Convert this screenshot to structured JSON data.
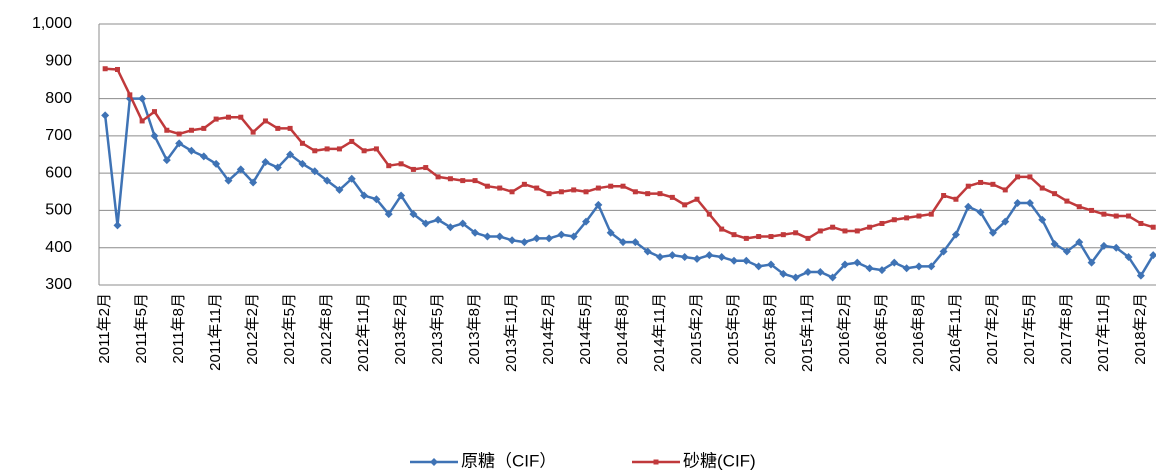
{
  "chart_data": {
    "type": "line",
    "categories": [
      "2011年2月",
      null,
      null,
      "2011年5月",
      null,
      null,
      "2011年8月",
      null,
      null,
      "2011年11月",
      null,
      null,
      "2012年2月",
      null,
      null,
      "2012年5月",
      null,
      null,
      "2012年8月",
      null,
      null,
      "2012年11月",
      null,
      null,
      "2013年2月",
      null,
      null,
      "2013年5月",
      null,
      null,
      "2013年8月",
      null,
      null,
      "2013年11月",
      null,
      null,
      "2014年2月",
      null,
      null,
      "2014年5月",
      null,
      null,
      "2014年8月",
      null,
      null,
      "2014年11月",
      null,
      null,
      "2015年2月",
      null,
      null,
      "2015年5月",
      null,
      null,
      "2015年8月",
      null,
      null,
      "2015年11月",
      null,
      null,
      "2016年2月",
      null,
      null,
      "2016年5月",
      null,
      null,
      "2016年8月",
      null,
      null,
      "2016年11月",
      null,
      null,
      "2017年2月",
      null,
      null,
      "2017年5月",
      null,
      null,
      "2017年8月",
      null,
      null,
      "2017年11月",
      null,
      null,
      "2018年2月",
      null
    ],
    "series": [
      {
        "name": "原糖（CIF）",
        "color": "#3f73b5",
        "marker": "diamond",
        "values": [
          755,
          460,
          800,
          800,
          700,
          635,
          680,
          660,
          645,
          625,
          580,
          610,
          575,
          630,
          615,
          650,
          625,
          605,
          580,
          555,
          585,
          540,
          530,
          490,
          540,
          490,
          465,
          475,
          455,
          465,
          440,
          430,
          430,
          420,
          415,
          425,
          425,
          435,
          430,
          470,
          515,
          440,
          415,
          415,
          390,
          375,
          380,
          375,
          370,
          380,
          375,
          365,
          365,
          350,
          355,
          330,
          320,
          335,
          335,
          320,
          355,
          360,
          345,
          340,
          360,
          345,
          350,
          350,
          390,
          435,
          510,
          495,
          440,
          470,
          520,
          520,
          475,
          410,
          390,
          415,
          360,
          405,
          400,
          375,
          325,
          380
        ]
      },
      {
        "name": "砂糖(CIF)",
        "color": "#c0393b",
        "marker": "square",
        "values": [
          880,
          878,
          810,
          740,
          765,
          715,
          705,
          715,
          720,
          745,
          750,
          750,
          710,
          740,
          720,
          720,
          680,
          660,
          665,
          665,
          685,
          660,
          665,
          620,
          625,
          610,
          615,
          590,
          585,
          580,
          580,
          565,
          560,
          550,
          570,
          560,
          545,
          550,
          555,
          550,
          560,
          565,
          565,
          550,
          545,
          545,
          535,
          515,
          530,
          490,
          450,
          435,
          425,
          430,
          430,
          435,
          440,
          425,
          445,
          455,
          445,
          445,
          455,
          465,
          475,
          480,
          485,
          490,
          540,
          530,
          565,
          575,
          570,
          555,
          590,
          590,
          560,
          545,
          525,
          510,
          500,
          490,
          485,
          485,
          465,
          455
        ]
      }
    ],
    "ylim": [
      300,
      1000
    ],
    "yticks": [
      300,
      400,
      500,
      600,
      700,
      800,
      900,
      {
        "value": 1000,
        "label": "1,000"
      }
    ],
    "grid": true
  }
}
